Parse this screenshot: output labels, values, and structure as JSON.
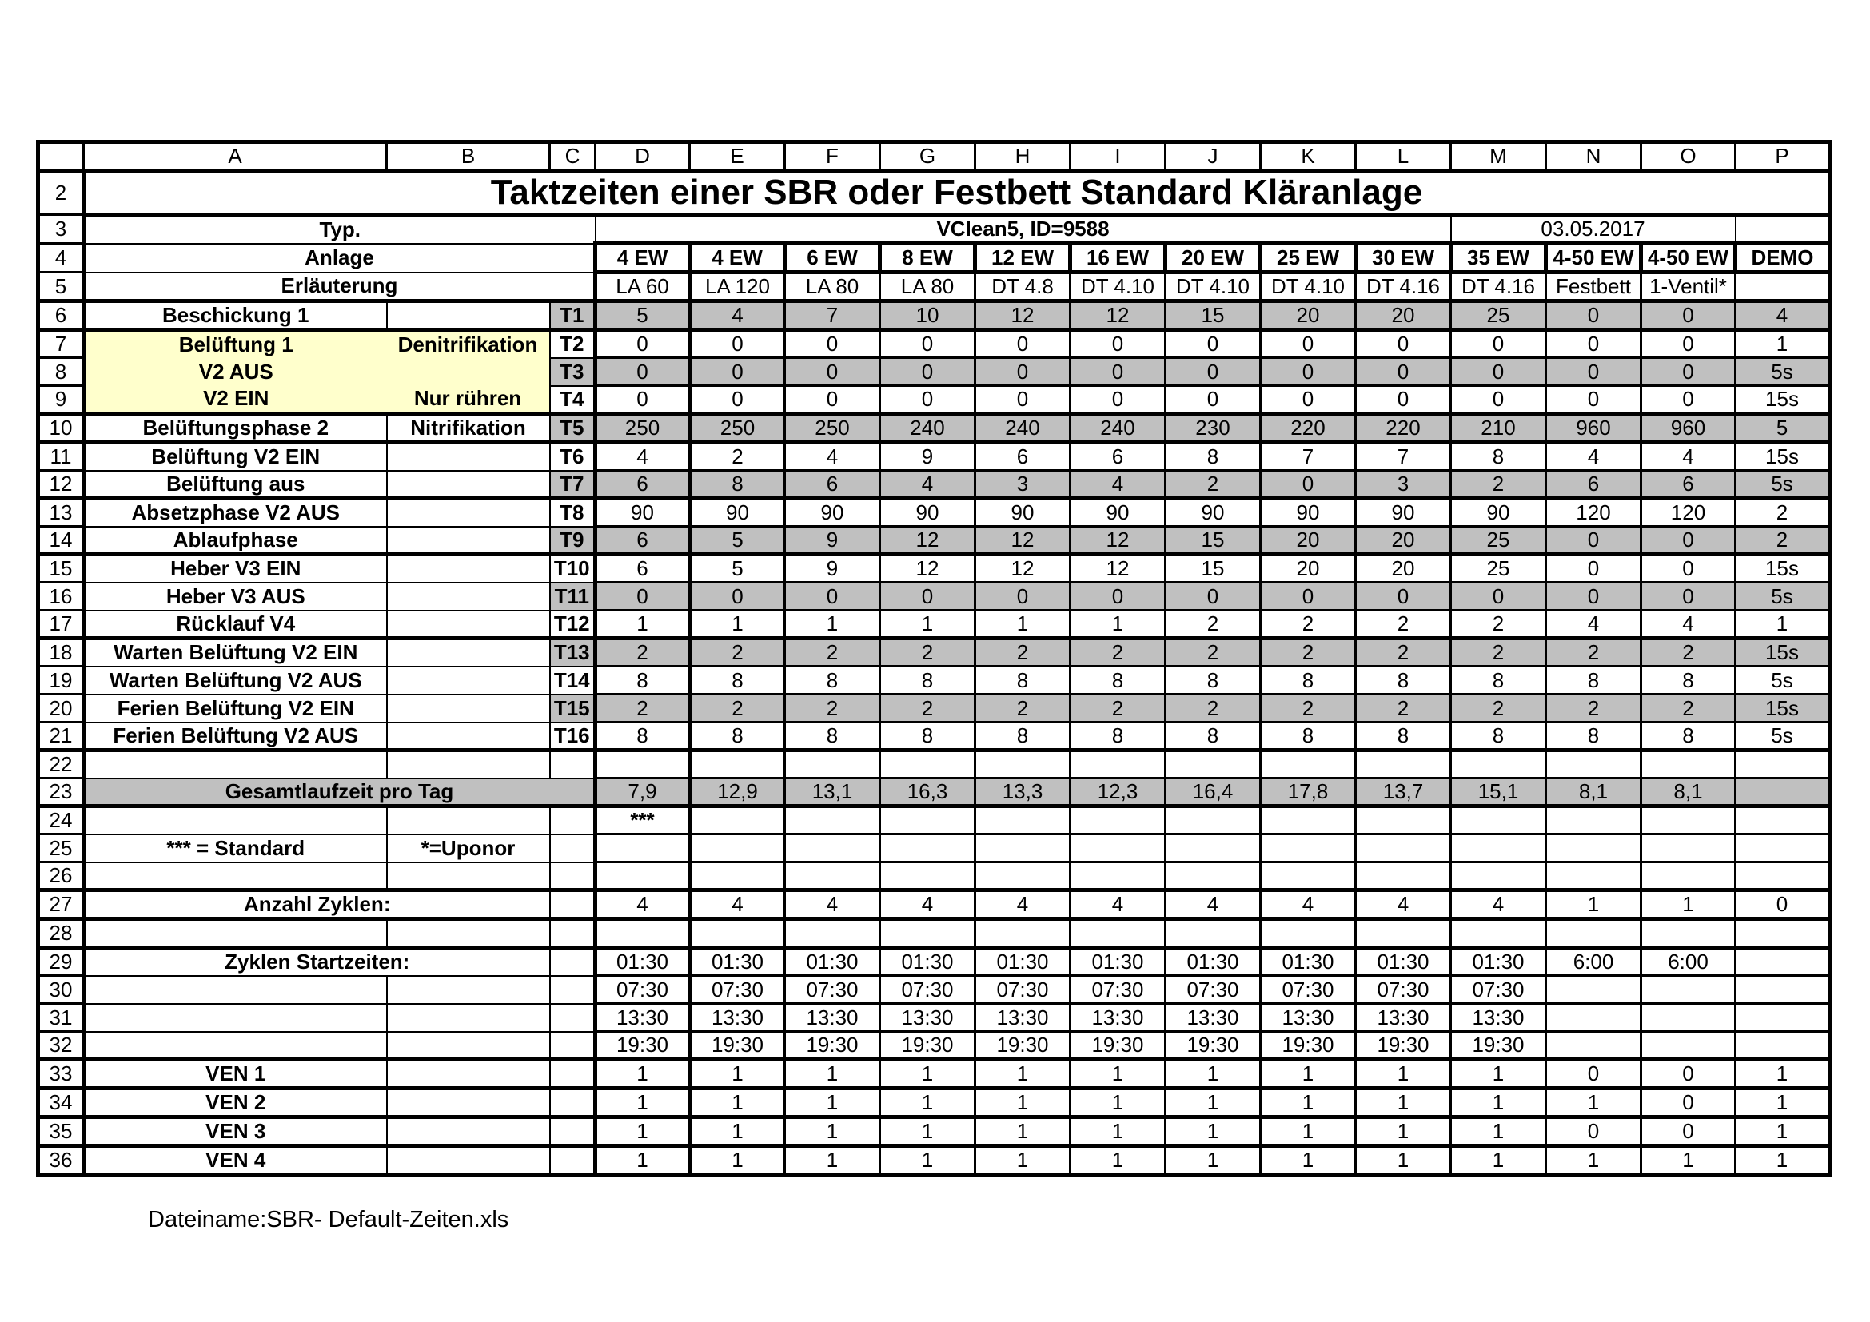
{
  "title": "Taktzeiten einer SBR oder Festbett Standard Kläranlage",
  "column_letters": [
    "A",
    "B",
    "C",
    "D",
    "E",
    "F",
    "G",
    "H",
    "I",
    "J",
    "K",
    "L",
    "M",
    "N",
    "O",
    "P"
  ],
  "row_numbers": [
    2,
    3,
    4,
    5,
    6,
    7,
    8,
    9,
    10,
    11,
    12,
    13,
    14,
    15,
    16,
    17,
    18,
    19,
    20,
    21,
    22,
    23,
    24,
    25,
    26,
    27,
    28,
    29,
    30,
    31,
    32,
    33,
    34,
    35,
    36
  ],
  "meta": {
    "typ_label": "Typ.",
    "typ_value": "VClean5, ID=9588",
    "date": "03.05.2017"
  },
  "anlage": {
    "label": "Anlage",
    "values": [
      "4 EW",
      "4 EW",
      "6 EW",
      "8 EW",
      "12 EW",
      "16 EW",
      "20 EW",
      "25 EW",
      "30 EW",
      "35 EW",
      "4-50 EW",
      "4-50 EW",
      "DEMO"
    ]
  },
  "erlaeuterung": {
    "label": "Erläuterung",
    "values": [
      "LA 60",
      "LA 120",
      "LA 80",
      "LA 80",
      "DT 4.8",
      "DT 4.10",
      "DT 4.10",
      "DT 4.10",
      "DT 4.16",
      "DT 4.16",
      "Festbett",
      "1-Ventil*",
      ""
    ]
  },
  "phases": [
    {
      "row": 6,
      "t": "T1",
      "label": "Beschickung 1",
      "note": "",
      "shaded": true,
      "highlight": false,
      "values": [
        5,
        4,
        7,
        10,
        12,
        12,
        15,
        20,
        20,
        25,
        0,
        0,
        "4"
      ]
    },
    {
      "row": 7,
      "t": "T2",
      "label": "Belüftung 1",
      "note": "Denitrifikation",
      "shaded": false,
      "highlight": true,
      "values": [
        0,
        0,
        0,
        0,
        0,
        0,
        0,
        0,
        0,
        0,
        0,
        0,
        "1"
      ]
    },
    {
      "row": 8,
      "t": "T3",
      "label": "V2 AUS",
      "note": "",
      "shaded": true,
      "highlight": true,
      "values": [
        0,
        0,
        0,
        0,
        0,
        0,
        0,
        0,
        0,
        0,
        0,
        0,
        "5s"
      ]
    },
    {
      "row": 9,
      "t": "T4",
      "label": "V2 EIN",
      "note": "Nur rühren",
      "shaded": false,
      "highlight": true,
      "values": [
        0,
        0,
        0,
        0,
        0,
        0,
        0,
        0,
        0,
        0,
        0,
        0,
        "15s"
      ]
    },
    {
      "row": 10,
      "t": "T5",
      "label": "Belüftungsphase 2",
      "note": "Nitrifikation",
      "shaded": true,
      "highlight": false,
      "values": [
        250,
        250,
        250,
        240,
        240,
        240,
        230,
        220,
        220,
        210,
        960,
        960,
        "5"
      ]
    },
    {
      "row": 11,
      "t": "T6",
      "label": "Belüftung V2 EIN",
      "note": "",
      "shaded": false,
      "highlight": false,
      "values": [
        4,
        2,
        4,
        9,
        6,
        6,
        8,
        7,
        7,
        8,
        4,
        4,
        "15s"
      ]
    },
    {
      "row": 12,
      "t": "T7",
      "label": "Belüftung aus",
      "note": "",
      "shaded": true,
      "highlight": false,
      "values": [
        6,
        8,
        6,
        4,
        3,
        4,
        2,
        0,
        3,
        2,
        6,
        6,
        "5s"
      ]
    },
    {
      "row": 13,
      "t": "T8",
      "label": "Absetzphase V2 AUS",
      "note": "",
      "shaded": false,
      "highlight": false,
      "values": [
        90,
        90,
        90,
        90,
        90,
        90,
        90,
        90,
        90,
        90,
        120,
        120,
        "2"
      ]
    },
    {
      "row": 14,
      "t": "T9",
      "label": "Ablaufphase",
      "note": "",
      "shaded": true,
      "highlight": false,
      "values": [
        6,
        5,
        9,
        12,
        12,
        12,
        15,
        20,
        20,
        25,
        0,
        0,
        "2"
      ]
    },
    {
      "row": 15,
      "t": "T10",
      "label": "Heber V3 EIN",
      "note": "",
      "shaded": false,
      "highlight": false,
      "values": [
        6,
        5,
        9,
        12,
        12,
        12,
        15,
        20,
        20,
        25,
        0,
        0,
        "15s"
      ]
    },
    {
      "row": 16,
      "t": "T11",
      "label": "Heber V3 AUS",
      "note": "",
      "shaded": true,
      "highlight": false,
      "values": [
        0,
        0,
        0,
        0,
        0,
        0,
        0,
        0,
        0,
        0,
        0,
        0,
        "5s"
      ]
    },
    {
      "row": 17,
      "t": "T12",
      "label": "Rücklauf V4",
      "note": "",
      "shaded": false,
      "highlight": false,
      "values": [
        1,
        1,
        1,
        1,
        1,
        1,
        2,
        2,
        2,
        2,
        4,
        4,
        "1"
      ]
    },
    {
      "row": 18,
      "t": "T13",
      "label": "Warten Belüftung V2 EIN",
      "note": "",
      "shaded": true,
      "highlight": false,
      "values": [
        2,
        2,
        2,
        2,
        2,
        2,
        2,
        2,
        2,
        2,
        2,
        2,
        "15s"
      ]
    },
    {
      "row": 19,
      "t": "T14",
      "label": "Warten Belüftung V2 AUS",
      "note": "",
      "shaded": false,
      "highlight": false,
      "values": [
        8,
        8,
        8,
        8,
        8,
        8,
        8,
        8,
        8,
        8,
        8,
        8,
        "5s"
      ]
    },
    {
      "row": 20,
      "t": "T15",
      "label": "Ferien Belüftung V2 EIN",
      "note": "",
      "shaded": true,
      "highlight": false,
      "values": [
        2,
        2,
        2,
        2,
        2,
        2,
        2,
        2,
        2,
        2,
        2,
        2,
        "15s"
      ]
    },
    {
      "row": 21,
      "t": "T16",
      "label": "Ferien Belüftung V2 AUS",
      "note": "",
      "shaded": false,
      "highlight": false,
      "values": [
        8,
        8,
        8,
        8,
        8,
        8,
        8,
        8,
        8,
        8,
        8,
        8,
        "5s"
      ]
    }
  ],
  "summary": {
    "row": 23,
    "label": "Gesamtlaufzeit pro Tag",
    "values": [
      "7,9",
      "12,9",
      "13,1",
      "16,3",
      "13,3",
      "12,3",
      "16,4",
      "17,8",
      "13,7",
      "15,1",
      "8,1",
      "8,1",
      ""
    ]
  },
  "star_row": {
    "row": 24,
    "d_value": "***"
  },
  "legend": {
    "row": 25,
    "standard": "*** = Standard",
    "uponor": "*=Uponor"
  },
  "cycles": {
    "row": 27,
    "label": "Anzahl Zyklen:",
    "values": [
      4,
      4,
      4,
      4,
      4,
      4,
      4,
      4,
      4,
      4,
      1,
      1,
      0
    ]
  },
  "start_times": {
    "row": 29,
    "label": "Zyklen Startzeiten:",
    "rows": [
      [
        "01:30",
        "01:30",
        "01:30",
        "01:30",
        "01:30",
        "01:30",
        "01:30",
        "01:30",
        "01:30",
        "01:30",
        "6:00",
        "6:00",
        ""
      ],
      [
        "07:30",
        "07:30",
        "07:30",
        "07:30",
        "07:30",
        "07:30",
        "07:30",
        "07:30",
        "07:30",
        "07:30",
        "",
        "",
        ""
      ],
      [
        "13:30",
        "13:30",
        "13:30",
        "13:30",
        "13:30",
        "13:30",
        "13:30",
        "13:30",
        "13:30",
        "13:30",
        "",
        "",
        ""
      ],
      [
        "19:30",
        "19:30",
        "19:30",
        "19:30",
        "19:30",
        "19:30",
        "19:30",
        "19:30",
        "19:30",
        "19:30",
        "",
        "",
        ""
      ]
    ]
  },
  "ven": [
    {
      "row": 33,
      "label": "VEN 1",
      "values": [
        1,
        1,
        1,
        1,
        1,
        1,
        1,
        1,
        1,
        1,
        0,
        0,
        1
      ]
    },
    {
      "row": 34,
      "label": "VEN 2",
      "values": [
        1,
        1,
        1,
        1,
        1,
        1,
        1,
        1,
        1,
        1,
        1,
        0,
        1
      ]
    },
    {
      "row": 35,
      "label": "VEN 3",
      "values": [
        1,
        1,
        1,
        1,
        1,
        1,
        1,
        1,
        1,
        1,
        0,
        0,
        1
      ]
    },
    {
      "row": 36,
      "label": "VEN 4",
      "values": [
        1,
        1,
        1,
        1,
        1,
        1,
        1,
        1,
        1,
        1,
        1,
        1,
        1
      ]
    }
  ],
  "empty_rows": [
    22,
    26,
    28
  ],
  "footer": {
    "filename": "Dateiname:SBR- Default-Zeiten.xls"
  },
  "colors": {
    "shaded": "#c0c0c0",
    "highlight": "#ffffcc",
    "grid": "#000000"
  }
}
